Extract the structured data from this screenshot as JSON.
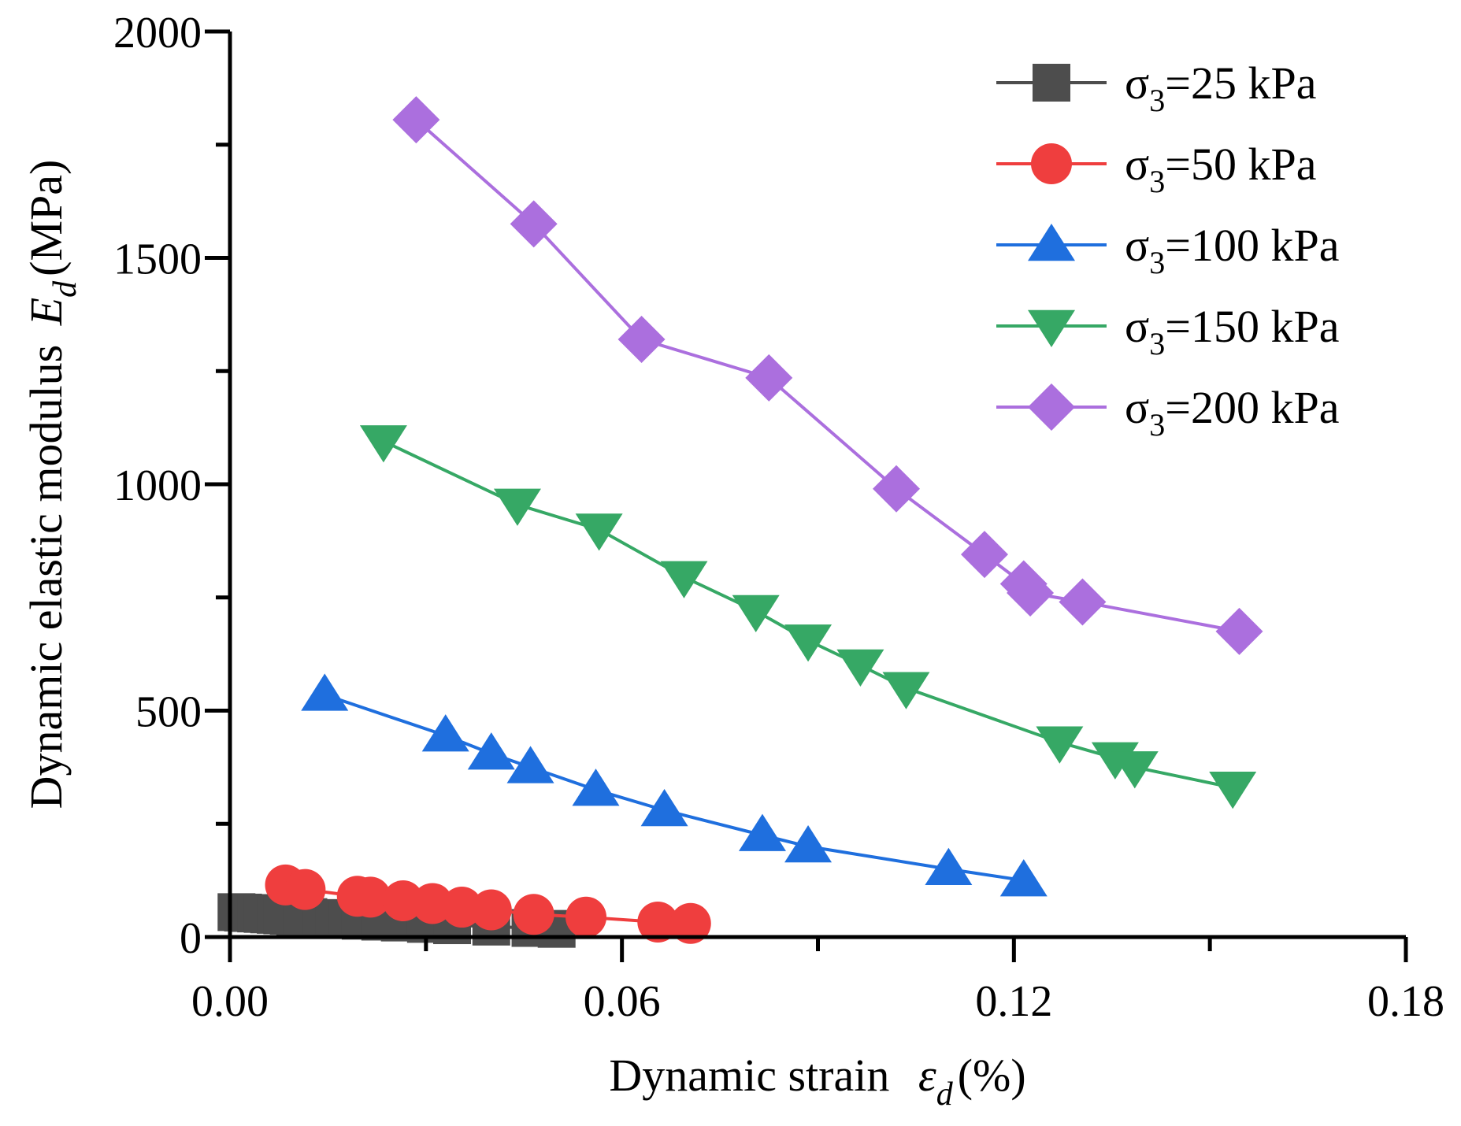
{
  "chart_data": {
    "type": "line",
    "xlabel_main": "Dynamic strain",
    "xlabel_symbol": "ε",
    "xlabel_sub": "d",
    "xlabel_unit": "(%)",
    "ylabel_main": "Dynamic elastic modulus",
    "ylabel_symbol": "E",
    "ylabel_sub": "d",
    "ylabel_unit": "(MPa)",
    "xlim": [
      0,
      0.18
    ],
    "ylim": [
      0,
      2000
    ],
    "xticks": [
      0.0,
      0.06,
      0.12,
      0.18
    ],
    "xtick_labels": [
      "0.00",
      "0.06",
      "0.12",
      "0.18"
    ],
    "xminor_ticks": [
      0.03,
      0.09,
      0.15
    ],
    "yticks": [
      0,
      500,
      1000,
      1500,
      2000
    ],
    "ytick_labels": [
      "0",
      "500",
      "1000",
      "1500",
      "2000"
    ],
    "yminor_ticks": [
      250,
      750,
      1250,
      1750
    ],
    "legend_position": "top-right",
    "series": [
      {
        "name": "σ3=25 kPa",
        "legend_prefix": "σ",
        "legend_sub": "3",
        "legend_suffix": "=25 kPa",
        "marker": "square",
        "color": "#4d4d4d",
        "x": [
          0.001,
          0.002,
          0.003,
          0.004,
          0.005,
          0.006,
          0.007,
          0.008,
          0.009,
          0.01,
          0.011,
          0.012,
          0.014,
          0.016,
          0.018,
          0.02,
          0.023,
          0.026,
          0.03,
          0.034,
          0.04,
          0.046,
          0.05
        ],
        "y": [
          55,
          54,
          53,
          52,
          51,
          50,
          49,
          48,
          47,
          46,
          45,
          44,
          42,
          40,
          38,
          36,
          34,
          32,
          29,
          26,
          23,
          20,
          18
        ]
      },
      {
        "name": "σ3=50 kPa",
        "legend_prefix": "σ",
        "legend_sub": "3",
        "legend_suffix": "=50 kPa",
        "marker": "circle",
        "color": "#ef3e3e",
        "x": [
          0.0085,
          0.0115,
          0.0195,
          0.0215,
          0.0265,
          0.031,
          0.0355,
          0.04,
          0.0465,
          0.0545,
          0.0655,
          0.0705
        ],
        "y": [
          115,
          105,
          90,
          88,
          80,
          74,
          66,
          60,
          50,
          44,
          33,
          30
        ]
      },
      {
        "name": "σ3=100 kPa",
        "legend_prefix": "σ",
        "legend_sub": "3",
        "legend_suffix": "=100 kPa",
        "marker": "triangle-up",
        "color": "#1f6fde",
        "x": [
          0.0145,
          0.033,
          0.04,
          0.046,
          0.056,
          0.0665,
          0.0815,
          0.0885,
          0.11,
          0.1215
        ],
        "y": [
          535,
          445,
          405,
          375,
          325,
          280,
          225,
          200,
          150,
          125
        ]
      },
      {
        "name": "σ3=150 kPa",
        "legend_prefix": "σ",
        "legend_sub": "3",
        "legend_suffix": "=150 kPa",
        "marker": "triangle-down",
        "color": "#36a865",
        "x": [
          0.0235,
          0.044,
          0.0565,
          0.0695,
          0.0805,
          0.0885,
          0.0965,
          0.1035,
          0.127,
          0.1355,
          0.1385,
          0.1535
        ],
        "y": [
          1095,
          955,
          900,
          795,
          720,
          655,
          600,
          550,
          430,
          395,
          375,
          330
        ]
      },
      {
        "name": "σ3=200 kPa",
        "legend_prefix": "σ",
        "legend_sub": "3",
        "legend_suffix": "=200 kPa",
        "marker": "diamond",
        "color": "#ab6fde",
        "x": [
          0.0285,
          0.0465,
          0.063,
          0.0825,
          0.102,
          0.1155,
          0.1215,
          0.1225,
          0.1305,
          0.1545
        ],
        "y": [
          1805,
          1575,
          1320,
          1235,
          990,
          845,
          780,
          760,
          740,
          675
        ]
      }
    ]
  }
}
